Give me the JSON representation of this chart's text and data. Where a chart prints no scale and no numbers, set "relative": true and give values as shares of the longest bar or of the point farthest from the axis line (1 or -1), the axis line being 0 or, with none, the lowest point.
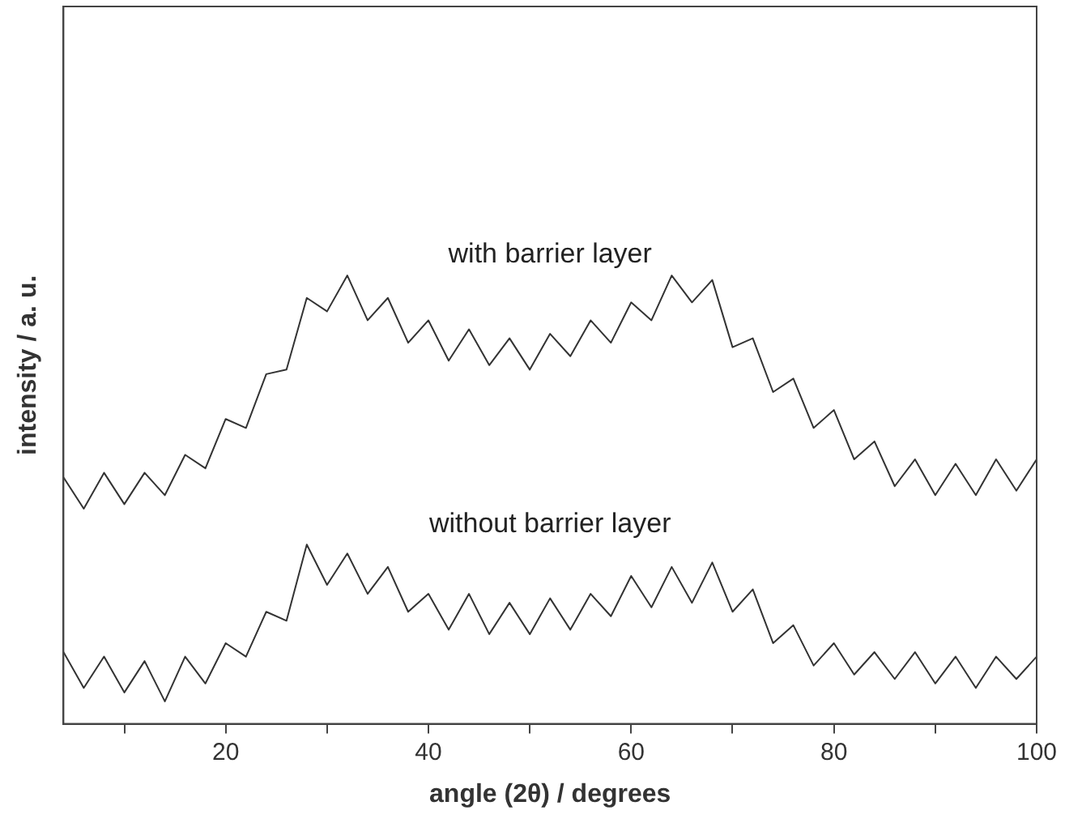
{
  "chart_data": {
    "type": "line",
    "xlabel": "angle (2θ) / degrees",
    "ylabel": "intensity / a. u.",
    "relative": true,
    "xlim": [
      4,
      100
    ],
    "xticks": [
      {
        "value": 10,
        "label": null
      },
      20,
      {
        "value": 30,
        "label": null
      },
      40,
      {
        "value": 50,
        "label": null
      },
      60,
      {
        "value": 70,
        "label": null
      },
      80,
      {
        "value": 90,
        "label": null
      },
      100
    ],
    "x": [
      4,
      6,
      8,
      10,
      12,
      14,
      16,
      18,
      20,
      22,
      24,
      26,
      28,
      30,
      32,
      34,
      36,
      38,
      40,
      42,
      44,
      46,
      48,
      50,
      52,
      54,
      56,
      58,
      60,
      62,
      64,
      66,
      68,
      70,
      72,
      74,
      76,
      78,
      80,
      82,
      84,
      86,
      88,
      90,
      92,
      94,
      96,
      98,
      100
    ],
    "series": [
      {
        "name": "with barrier layer",
        "color": "#333333",
        "values": [
          0.55,
          0.48,
          0.56,
          0.49,
          0.56,
          0.51,
          0.6,
          0.57,
          0.68,
          0.66,
          0.78,
          0.79,
          0.95,
          0.92,
          1.0,
          0.9,
          0.95,
          0.85,
          0.9,
          0.81,
          0.88,
          0.8,
          0.86,
          0.79,
          0.87,
          0.82,
          0.9,
          0.85,
          0.94,
          0.9,
          1.0,
          0.94,
          0.99,
          0.84,
          0.86,
          0.74,
          0.77,
          0.66,
          0.7,
          0.59,
          0.63,
          0.53,
          0.59,
          0.51,
          0.58,
          0.51,
          0.59,
          0.52,
          0.59
        ]
      },
      {
        "name": "without barrier layer",
        "color": "#333333",
        "values": [
          0.16,
          0.08,
          0.15,
          0.07,
          0.14,
          0.05,
          0.15,
          0.09,
          0.18,
          0.15,
          0.25,
          0.23,
          0.4,
          0.31,
          0.38,
          0.29,
          0.35,
          0.25,
          0.29,
          0.21,
          0.29,
          0.2,
          0.27,
          0.2,
          0.28,
          0.21,
          0.29,
          0.24,
          0.33,
          0.26,
          0.35,
          0.27,
          0.36,
          0.25,
          0.3,
          0.18,
          0.22,
          0.13,
          0.18,
          0.11,
          0.16,
          0.1,
          0.16,
          0.09,
          0.15,
          0.08,
          0.15,
          0.1,
          0.15
        ]
      }
    ],
    "grid": false,
    "legend": false,
    "marker": "none",
    "line_style": "solid"
  }
}
